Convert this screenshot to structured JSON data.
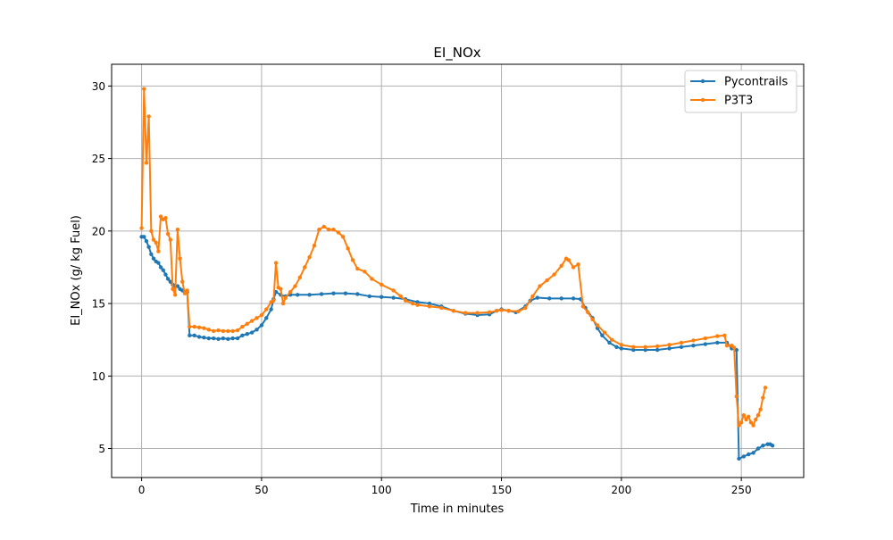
{
  "chart_data": {
    "type": "line",
    "title": "EI_NOx",
    "xlabel": "Time in minutes",
    "ylabel": "EI_NOx (g/ kg Fuel)",
    "xlim": [
      -12.5,
      276
    ],
    "ylim": [
      3,
      31.5
    ],
    "xticks": [
      0,
      50,
      100,
      150,
      200,
      250
    ],
    "yticks": [
      5,
      10,
      15,
      20,
      25,
      30
    ],
    "grid": true,
    "legend_position": "top-right",
    "colors": {
      "Pycontrails": "#1f77b4",
      "P3T3": "#ff7f0e",
      "grid": "#b0b0b0",
      "axis": "#000000"
    },
    "series": [
      {
        "name": "Pycontrails",
        "points": [
          [
            0,
            19.6
          ],
          [
            1,
            19.6
          ],
          [
            2,
            19.3
          ],
          [
            3,
            18.9
          ],
          [
            4,
            18.4
          ],
          [
            5,
            18.1
          ],
          [
            6,
            17.9
          ],
          [
            7,
            17.8
          ],
          [
            8,
            17.5
          ],
          [
            9,
            17.3
          ],
          [
            10,
            17.0
          ],
          [
            11,
            16.7
          ],
          [
            12,
            16.5
          ],
          [
            13,
            16.3
          ],
          [
            14,
            16.2
          ],
          [
            15,
            16.2
          ],
          [
            16,
            16.0
          ],
          [
            17,
            15.9
          ],
          [
            18,
            15.8
          ],
          [
            19,
            15.8
          ],
          [
            20,
            12.8
          ],
          [
            22,
            12.8
          ],
          [
            24,
            12.7
          ],
          [
            26,
            12.65
          ],
          [
            28,
            12.6
          ],
          [
            30,
            12.6
          ],
          [
            32,
            12.55
          ],
          [
            34,
            12.6
          ],
          [
            36,
            12.55
          ],
          [
            38,
            12.6
          ],
          [
            40,
            12.6
          ],
          [
            42,
            12.8
          ],
          [
            44,
            12.9
          ],
          [
            46,
            13.0
          ],
          [
            48,
            13.2
          ],
          [
            50,
            13.5
          ],
          [
            52,
            14.0
          ],
          [
            54,
            14.6
          ],
          [
            55,
            15.3
          ],
          [
            56,
            15.8
          ],
          [
            58,
            15.6
          ],
          [
            60,
            15.5
          ],
          [
            62,
            15.6
          ],
          [
            65,
            15.6
          ],
          [
            70,
            15.6
          ],
          [
            75,
            15.65
          ],
          [
            80,
            15.7
          ],
          [
            85,
            15.7
          ],
          [
            90,
            15.65
          ],
          [
            95,
            15.5
          ],
          [
            100,
            15.45
          ],
          [
            105,
            15.4
          ],
          [
            110,
            15.3
          ],
          [
            115,
            15.1
          ],
          [
            120,
            15.0
          ],
          [
            125,
            14.8
          ],
          [
            130,
            14.5
          ],
          [
            135,
            14.3
          ],
          [
            140,
            14.2
          ],
          [
            145,
            14.25
          ],
          [
            148,
            14.5
          ],
          [
            150,
            14.6
          ],
          [
            153,
            14.5
          ],
          [
            156,
            14.4
          ],
          [
            160,
            14.8
          ],
          [
            162,
            15.2
          ],
          [
            165,
            15.4
          ],
          [
            170,
            15.35
          ],
          [
            175,
            15.35
          ],
          [
            180,
            15.35
          ],
          [
            183,
            15.3
          ],
          [
            185,
            14.7
          ],
          [
            188,
            14.0
          ],
          [
            190,
            13.3
          ],
          [
            192,
            12.8
          ],
          [
            195,
            12.3
          ],
          [
            198,
            12.0
          ],
          [
            200,
            11.9
          ],
          [
            205,
            11.8
          ],
          [
            210,
            11.8
          ],
          [
            215,
            11.8
          ],
          [
            220,
            11.9
          ],
          [
            225,
            12.0
          ],
          [
            230,
            12.1
          ],
          [
            235,
            12.2
          ],
          [
            240,
            12.3
          ],
          [
            244,
            12.3
          ],
          [
            246,
            11.9
          ],
          [
            248,
            11.8
          ],
          [
            249,
            4.3
          ],
          [
            251,
            4.45
          ],
          [
            253,
            4.6
          ],
          [
            255,
            4.7
          ],
          [
            257,
            5.0
          ],
          [
            259,
            5.2
          ],
          [
            261,
            5.3
          ],
          [
            262,
            5.3
          ],
          [
            263,
            5.2
          ]
        ]
      },
      {
        "name": "P3T3",
        "points": [
          [
            0,
            20.2
          ],
          [
            1,
            29.8
          ],
          [
            2,
            24.7
          ],
          [
            3,
            27.9
          ],
          [
            4,
            20.0
          ],
          [
            5,
            19.4
          ],
          [
            6,
            19.2
          ],
          [
            7,
            18.6
          ],
          [
            8,
            21.0
          ],
          [
            9,
            20.8
          ],
          [
            10,
            20.9
          ],
          [
            11,
            19.8
          ],
          [
            12,
            19.4
          ],
          [
            13,
            16.0
          ],
          [
            14,
            15.6
          ],
          [
            15,
            20.1
          ],
          [
            16,
            18.1
          ],
          [
            17,
            16.5
          ],
          [
            18,
            15.7
          ],
          [
            19,
            15.9
          ],
          [
            20,
            13.4
          ],
          [
            22,
            13.4
          ],
          [
            24,
            13.35
          ],
          [
            26,
            13.3
          ],
          [
            28,
            13.2
          ],
          [
            30,
            13.1
          ],
          [
            32,
            13.15
          ],
          [
            34,
            13.1
          ],
          [
            36,
            13.1
          ],
          [
            38,
            13.1
          ],
          [
            40,
            13.15
          ],
          [
            42,
            13.4
          ],
          [
            44,
            13.6
          ],
          [
            46,
            13.8
          ],
          [
            48,
            14.0
          ],
          [
            50,
            14.2
          ],
          [
            52,
            14.6
          ],
          [
            54,
            15.1
          ],
          [
            55,
            15.2
          ],
          [
            56,
            17.8
          ],
          [
            57,
            16.1
          ],
          [
            58,
            16.0
          ],
          [
            59,
            15.0
          ],
          [
            60,
            15.4
          ],
          [
            62,
            15.8
          ],
          [
            64,
            16.2
          ],
          [
            66,
            16.8
          ],
          [
            68,
            17.5
          ],
          [
            70,
            18.2
          ],
          [
            72,
            19.0
          ],
          [
            74,
            20.1
          ],
          [
            76,
            20.3
          ],
          [
            78,
            20.1
          ],
          [
            80,
            20.1
          ],
          [
            82,
            19.9
          ],
          [
            84,
            19.6
          ],
          [
            86,
            18.8
          ],
          [
            88,
            18.0
          ],
          [
            90,
            17.4
          ],
          [
            93,
            17.2
          ],
          [
            96,
            16.7
          ],
          [
            100,
            16.3
          ],
          [
            105,
            15.9
          ],
          [
            108,
            15.5
          ],
          [
            110,
            15.2
          ],
          [
            113,
            15.0
          ],
          [
            115,
            14.9
          ],
          [
            120,
            14.8
          ],
          [
            125,
            14.7
          ],
          [
            130,
            14.5
          ],
          [
            135,
            14.35
          ],
          [
            140,
            14.35
          ],
          [
            145,
            14.4
          ],
          [
            148,
            14.5
          ],
          [
            150,
            14.55
          ],
          [
            153,
            14.5
          ],
          [
            157,
            14.45
          ],
          [
            160,
            14.7
          ],
          [
            163,
            15.5
          ],
          [
            166,
            16.2
          ],
          [
            169,
            16.6
          ],
          [
            172,
            17.0
          ],
          [
            175,
            17.6
          ],
          [
            177,
            18.1
          ],
          [
            178,
            18.0
          ],
          [
            180,
            17.5
          ],
          [
            182,
            17.7
          ],
          [
            184,
            14.8
          ],
          [
            186,
            14.4
          ],
          [
            188,
            13.9
          ],
          [
            190,
            13.5
          ],
          [
            193,
            13.0
          ],
          [
            196,
            12.5
          ],
          [
            200,
            12.15
          ],
          [
            205,
            12.0
          ],
          [
            210,
            12.0
          ],
          [
            215,
            12.05
          ],
          [
            220,
            12.15
          ],
          [
            225,
            12.3
          ],
          [
            230,
            12.45
          ],
          [
            235,
            12.6
          ],
          [
            240,
            12.75
          ],
          [
            243,
            12.8
          ],
          [
            244,
            12.1
          ],
          [
            246,
            12.1
          ],
          [
            247,
            11.95
          ],
          [
            248,
            8.6
          ],
          [
            249,
            6.6
          ],
          [
            250,
            6.8
          ],
          [
            251,
            7.3
          ],
          [
            252,
            7.0
          ],
          [
            253,
            7.2
          ],
          [
            254,
            6.8
          ],
          [
            255,
            6.6
          ],
          [
            256,
            7.0
          ],
          [
            257,
            7.3
          ],
          [
            258,
            7.7
          ],
          [
            259,
            8.5
          ],
          [
            260,
            9.2
          ]
        ]
      }
    ]
  }
}
